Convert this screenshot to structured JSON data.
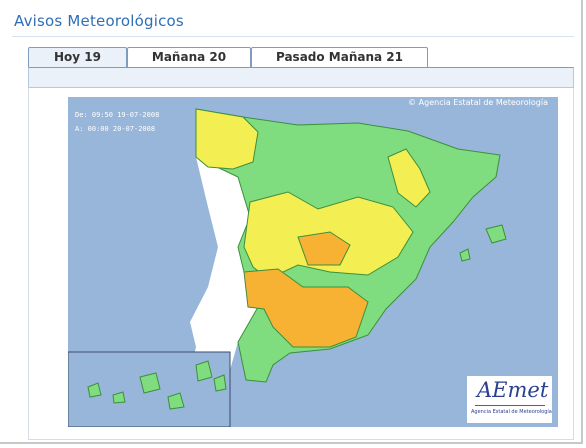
{
  "header": {
    "title": "Avisos Meteorológicos"
  },
  "tabs": [
    {
      "label": "Hoy 19",
      "active": true
    },
    {
      "label": "Mañana 20",
      "active": false
    },
    {
      "label": "Pasado Mañana 21",
      "active": false
    }
  ],
  "map": {
    "issued_line": "De: 09:50 19-07-2008",
    "valid_line": "A:  00:00 20-07-2008",
    "agency_label": "© Agencia Estatal de Meteorología",
    "logo_text": "AEmet",
    "logo_subtitle": "Agencia Estatal de Meteorología",
    "colors": {
      "sea": "#98b6d9",
      "portugal": "#ffffff",
      "green": "#7fdc7f",
      "yellow": "#f3ee52",
      "orange": "#f7b234",
      "border": "#3d8f3d",
      "accent": "#2f6fb7"
    }
  }
}
